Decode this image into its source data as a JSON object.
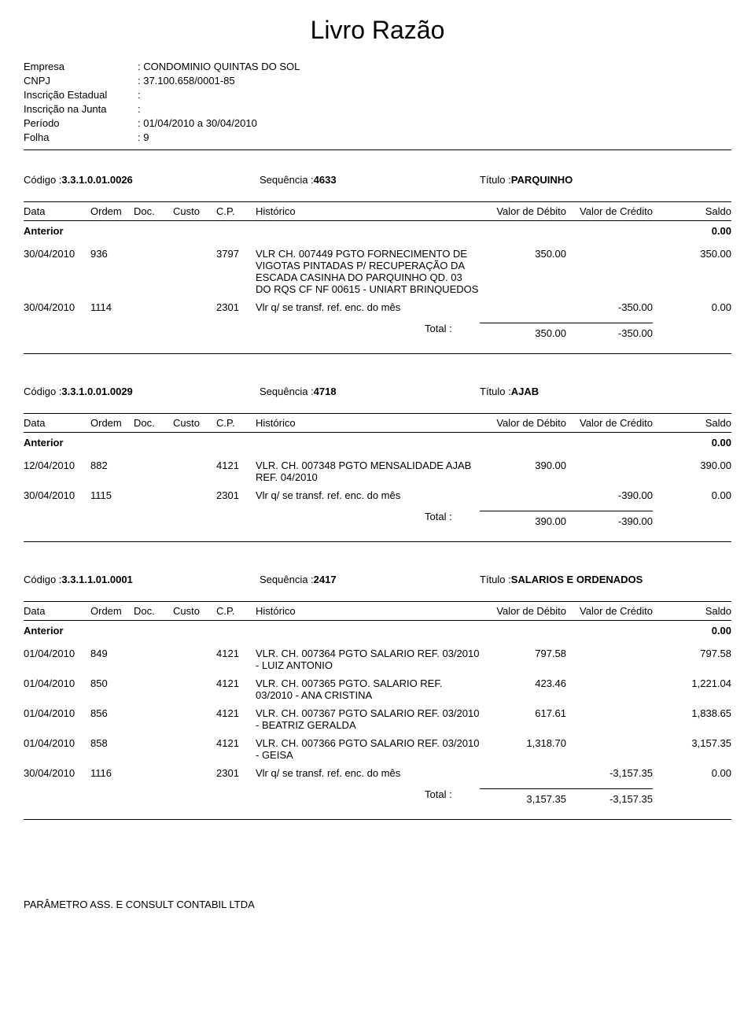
{
  "title": "Livro Razão",
  "header": {
    "empresa_label": "Empresa",
    "empresa_value": ": CONDOMINIO QUINTAS DO SOL",
    "cnpj_label": "CNPJ",
    "cnpj_value": ": 37.100.658/0001-85",
    "inscricao_estadual_label": "Inscrição Estadual",
    "inscricao_estadual_value": ":",
    "inscricao_junta_label": "Inscrição na Junta",
    "inscricao_junta_value": ":",
    "periodo_label": "Período",
    "periodo_value": ": 01/04/2010 a 30/04/2010",
    "folha_label": "Folha",
    "folha_value": ": 9"
  },
  "labels": {
    "codigo": "Código :",
    "sequencia": "Sequência :",
    "titulo": "Título :",
    "data": "Data",
    "ordem": "Ordem",
    "doc": "Doc.",
    "custo": "Custo",
    "cp": "C.P.",
    "historico": "Histórico",
    "debito": "Valor de Débito",
    "credito": "Valor de Crédito",
    "saldo": "Saldo",
    "anterior": "Anterior",
    "total": "Total  :"
  },
  "accounts": [
    {
      "codigo": "3.3.1.0.01.0026",
      "sequencia": "4633",
      "titulo": "PARQUINHO",
      "anterior_saldo": "0.00",
      "rows": [
        {
          "data": "30/04/2010",
          "ordem": "936",
          "doc": "",
          "custo": "",
          "cp": "3797",
          "historico": "VLR CH. 007449 PGTO FORNECIMENTO DE VIGOTAS PINTADAS P/ RECUPERAÇÃO DA ESCADA CASINHA DO PARQUINHO QD. 03 DO RQS CF NF 00615 - UNIART BRINQUEDOS",
          "debito": "350.00",
          "credito": "",
          "saldo": "350.00"
        },
        {
          "data": "30/04/2010",
          "ordem": "1114",
          "doc": "",
          "custo": "",
          "cp": "2301",
          "historico": "Vlr q/ se transf. ref. enc. do mês",
          "debito": "",
          "credito": "-350.00",
          "saldo": "0.00"
        }
      ],
      "total_debito": "350.00",
      "total_credito": "-350.00"
    },
    {
      "codigo": "3.3.1.0.01.0029",
      "sequencia": "4718",
      "titulo": "AJAB",
      "anterior_saldo": "0.00",
      "rows": [
        {
          "data": "12/04/2010",
          "ordem": "882",
          "doc": "",
          "custo": "",
          "cp": "4121",
          "historico": "VLR. CH. 007348 PGTO MENSALIDADE AJAB REF. 04/2010",
          "debito": "390.00",
          "credito": "",
          "saldo": "390.00"
        },
        {
          "data": "30/04/2010",
          "ordem": "1115",
          "doc": "",
          "custo": "",
          "cp": "2301",
          "historico": "Vlr q/ se transf. ref. enc. do mês",
          "debito": "",
          "credito": "-390.00",
          "saldo": "0.00"
        }
      ],
      "total_debito": "390.00",
      "total_credito": "-390.00"
    },
    {
      "codigo": "3.3.1.1.01.0001",
      "sequencia": "2417",
      "titulo": "SALARIOS E ORDENADOS",
      "anterior_saldo": "0.00",
      "rows": [
        {
          "data": "01/04/2010",
          "ordem": "849",
          "doc": "",
          "custo": "",
          "cp": "4121",
          "historico": "VLR. CH. 007364 PGTO SALARIO REF. 03/2010 - LUIZ ANTONIO",
          "debito": "797.58",
          "credito": "",
          "saldo": "797.58"
        },
        {
          "data": "01/04/2010",
          "ordem": "850",
          "doc": "",
          "custo": "",
          "cp": "4121",
          "historico": "VLR. CH. 007365 PGTO. SALARIO REF. 03/2010 - ANA CRISTINA",
          "debito": "423.46",
          "credito": "",
          "saldo": "1,221.04"
        },
        {
          "data": "01/04/2010",
          "ordem": "856",
          "doc": "",
          "custo": "",
          "cp": "4121",
          "historico": "VLR. CH. 007367 PGTO SALARIO REF. 03/2010 - BEATRIZ GERALDA",
          "debito": "617.61",
          "credito": "",
          "saldo": "1,838.65"
        },
        {
          "data": "01/04/2010",
          "ordem": "858",
          "doc": "",
          "custo": "",
          "cp": "4121",
          "historico": "VLR. CH. 007366 PGTO SALARIO REF. 03/2010 - GEISA",
          "debito": "1,318.70",
          "credito": "",
          "saldo": "3,157.35"
        },
        {
          "data": "30/04/2010",
          "ordem": "1116",
          "doc": "",
          "custo": "",
          "cp": "2301",
          "historico": "Vlr q/ se transf. ref. enc. do mês",
          "debito": "",
          "credito": "-3,157.35",
          "saldo": "0.00"
        }
      ],
      "total_debito": "3,157.35",
      "total_credito": "-3,157.35"
    }
  ],
  "footer": "PARÂMETRO ASS. E CONSULT CONTABIL LTDA"
}
